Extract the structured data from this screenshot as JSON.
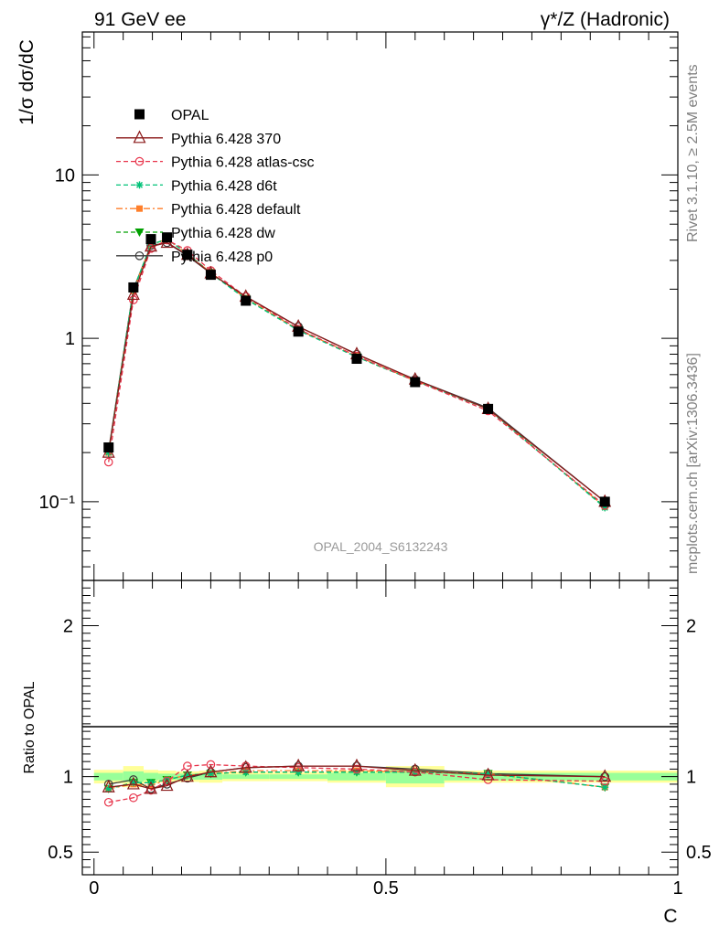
{
  "header": {
    "left_title": "91 GeV ee",
    "right_title": "γ*/Z (Hadronic)"
  },
  "side_text": {
    "rivet": "Rivet 3.1.10, ≥ 2.5M events",
    "mcplots": "mcplots.cern.ch [arXiv:1306.3436]"
  },
  "watermark": "OPAL_2004_S6132243",
  "chart_data": [
    {
      "type": "line",
      "panel": "main",
      "ylabel": "1/σ dσ/dC",
      "yscale": "log",
      "ylim": [
        0.033,
        75
      ],
      "xlim": [
        -0.02,
        1.0
      ],
      "ytick_labels": [
        "10⁻¹",
        "1",
        "10"
      ],
      "ytick_values": [
        0.1,
        1,
        10
      ],
      "legend_position": "top-left",
      "x": [
        0.025,
        0.0675,
        0.0975,
        0.125,
        0.16,
        0.2,
        0.26,
        0.35,
        0.45,
        0.55,
        0.675,
        0.875
      ],
      "series": [
        {
          "name": "OPAL",
          "color": "#000000",
          "marker": "square",
          "linestyle": "none",
          "values": [
            0.215,
            2.05,
            4.05,
            4.15,
            3.25,
            2.45,
            1.7,
            1.1,
            0.75,
            0.54,
            0.37,
            0.1
          ],
          "yerr": [
            0.015,
            0.08,
            0.12,
            0.12,
            0.08,
            0.06,
            0.04,
            0.03,
            0.02,
            0.02,
            0.01,
            0.004
          ]
        },
        {
          "name": "Pythia 6.428 370",
          "color": "#8b1a1a",
          "marker": "triangle",
          "linestyle": "solid",
          "values": [
            0.2,
            1.85,
            3.65,
            3.85,
            3.25,
            2.5,
            1.8,
            1.18,
            0.8,
            0.56,
            0.37,
            0.1
          ]
        },
        {
          "name": "Pythia 6.428 atlas-csc",
          "color": "#e8334a",
          "marker": "circle-open",
          "linestyle": "dashed",
          "values": [
            0.175,
            1.72,
            3.55,
            4.0,
            3.45,
            2.6,
            1.8,
            1.14,
            0.78,
            0.55,
            0.36,
            0.095
          ]
        },
        {
          "name": "Pythia 6.428 d6t",
          "color": "#00c278",
          "marker": "star",
          "linestyle": "dashed",
          "values": [
            0.2,
            1.98,
            3.75,
            4.05,
            3.3,
            2.5,
            1.74,
            1.12,
            0.77,
            0.55,
            0.37,
            0.092
          ]
        },
        {
          "name": "Pythia 6.428 default",
          "color": "#ff7f2a",
          "marker": "square-small",
          "linestyle": "dashdot",
          "values": [
            0.2,
            1.95,
            3.75,
            4.05,
            3.3,
            2.52,
            1.76,
            1.13,
            0.78,
            0.55,
            0.37,
            0.093
          ]
        },
        {
          "name": "Pythia 6.428 dw",
          "color": "#00a000",
          "marker": "triangle-down",
          "linestyle": "dashed",
          "values": [
            0.2,
            1.98,
            3.75,
            4.05,
            3.3,
            2.52,
            1.75,
            1.13,
            0.77,
            0.55,
            0.37,
            0.093
          ]
        },
        {
          "name": "Pythia 6.428 p0",
          "color": "#3a3a3a",
          "marker": "circle-open",
          "linestyle": "solid",
          "values": [
            0.205,
            2.0,
            3.7,
            3.85,
            3.2,
            2.5,
            1.8,
            1.18,
            0.8,
            0.56,
            0.375,
            0.1
          ]
        }
      ]
    },
    {
      "type": "line",
      "panel": "ratio",
      "ylabel": "Ratio to OPAL",
      "xlabel": "C",
      "ylim": [
        0.35,
        2.3
      ],
      "xlim": [
        -0.02,
        1.0
      ],
      "ytick_values": [
        0.5,
        1,
        2
      ],
      "ytick_labels": [
        "0.5",
        "1",
        "2"
      ],
      "xtick_values": [
        0,
        0.5,
        1
      ],
      "xtick_labels": [
        "0",
        "0.5",
        "1"
      ],
      "band_edges": [
        0.0,
        0.05,
        0.085,
        0.11,
        0.14,
        0.18,
        0.22,
        0.3,
        0.4,
        0.5,
        0.6,
        0.75,
        1.0
      ],
      "band_yellow_halfwidth": [
        0.045,
        0.07,
        0.045,
        0.04,
        0.035,
        0.04,
        0.03,
        0.03,
        0.04,
        0.07,
        0.04,
        0.04
      ],
      "band_green_halfwidth": [
        0.025,
        0.035,
        0.025,
        0.02,
        0.02,
        0.02,
        0.015,
        0.015,
        0.025,
        0.045,
        0.025,
        0.025
      ],
      "x": [
        0.025,
        0.0675,
        0.0975,
        0.125,
        0.16,
        0.2,
        0.26,
        0.35,
        0.45,
        0.55,
        0.675,
        0.875
      ],
      "series": [
        {
          "name": "Pythia 6.428 370",
          "color": "#8b1a1a",
          "marker": "triangle",
          "linestyle": "solid",
          "values": [
            0.93,
            0.95,
            0.92,
            0.94,
            1.0,
            1.03,
            1.06,
            1.07,
            1.07,
            1.04,
            1.01,
            1.0
          ]
        },
        {
          "name": "Pythia 6.428 atlas-csc",
          "color": "#e8334a",
          "marker": "circle-open",
          "linestyle": "dashed",
          "values": [
            0.83,
            0.86,
            0.91,
            0.97,
            1.07,
            1.08,
            1.07,
            1.06,
            1.05,
            1.03,
            0.98,
            0.97
          ]
        },
        {
          "name": "Pythia 6.428 d6t",
          "color": "#00c278",
          "marker": "star",
          "linestyle": "dashed",
          "values": [
            0.92,
            0.96,
            0.96,
            0.98,
            1.01,
            1.02,
            1.03,
            1.03,
            1.03,
            1.03,
            1.02,
            0.93
          ]
        },
        {
          "name": "Pythia 6.428 default",
          "color": "#ff7f2a",
          "marker": "square-small",
          "linestyle": "dashdot",
          "values": [
            0.92,
            0.95,
            0.94,
            0.98,
            1.01,
            1.02,
            1.04,
            1.04,
            1.04,
            1.03,
            1.02,
            0.93
          ]
        },
        {
          "name": "Pythia 6.428 dw",
          "color": "#00a000",
          "marker": "triangle-down",
          "linestyle": "dashed",
          "values": [
            0.92,
            0.96,
            0.96,
            0.98,
            1.01,
            1.02,
            1.03,
            1.03,
            1.03,
            1.03,
            1.02,
            0.93
          ]
        },
        {
          "name": "Pythia 6.428 p0",
          "color": "#3a3a3a",
          "marker": "circle-open",
          "linestyle": "solid",
          "values": [
            0.95,
            0.98,
            0.92,
            0.95,
            0.99,
            1.03,
            1.06,
            1.07,
            1.07,
            1.05,
            1.02,
            1.0
          ]
        }
      ]
    }
  ]
}
